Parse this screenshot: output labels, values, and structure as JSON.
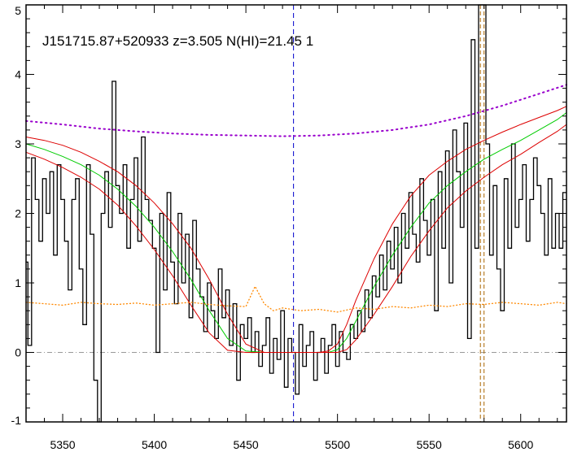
{
  "chart_data": {
    "type": "line",
    "title": "J151715.87+520933 z=3.505 N(HI)=21.45 1",
    "xlabel": "",
    "ylabel": "",
    "xlim": [
      5330,
      5625
    ],
    "ylim": [
      -1,
      5
    ],
    "x_ticks": [
      5350,
      5400,
      5450,
      5500,
      5550,
      5600
    ],
    "y_ticks": [
      -1,
      0,
      1,
      2,
      3,
      4,
      5
    ],
    "grid": false,
    "legend": "none",
    "colors": {
      "data": "#000000",
      "model": "#00cc00",
      "model_bounds": "#dd0000",
      "continuum": "#9900cc",
      "error": "#ff8800",
      "zero_line": "#999999",
      "center_line": "#0000cc",
      "feature_lines": "#aa6600"
    },
    "center_wavelength": 5476,
    "feature_lines": [
      5578,
      5580
    ],
    "series": [
      {
        "role": "flux",
        "style": "histogram",
        "x": [
          5330,
          5332,
          5334,
          5336,
          5338,
          5340,
          5342,
          5344,
          5346,
          5348,
          5350,
          5352,
          5354,
          5356,
          5358,
          5360,
          5362,
          5364,
          5366,
          5368,
          5370,
          5372,
          5374,
          5376,
          5378,
          5380,
          5382,
          5384,
          5386,
          5388,
          5390,
          5392,
          5394,
          5396,
          5398,
          5400,
          5402,
          5404,
          5406,
          5408,
          5410,
          5412,
          5414,
          5416,
          5418,
          5420,
          5422,
          5424,
          5426,
          5428,
          5430,
          5432,
          5434,
          5436,
          5438,
          5440,
          5442,
          5444,
          5446,
          5448,
          5450,
          5452,
          5454,
          5456,
          5458,
          5460,
          5462,
          5464,
          5466,
          5468,
          5470,
          5472,
          5474,
          5476,
          5478,
          5480,
          5482,
          5484,
          5486,
          5488,
          5490,
          5492,
          5494,
          5496,
          5498,
          5500,
          5502,
          5504,
          5506,
          5508,
          5510,
          5512,
          5514,
          5516,
          5518,
          5520,
          5522,
          5524,
          5526,
          5528,
          5530,
          5532,
          5534,
          5536,
          5538,
          5540,
          5542,
          5544,
          5546,
          5548,
          5550,
          5552,
          5554,
          5556,
          5558,
          5560,
          5562,
          5564,
          5566,
          5568,
          5570,
          5572,
          5574,
          5576,
          5578,
          5580,
          5582,
          5584,
          5586,
          5588,
          5590,
          5592,
          5594,
          5596,
          5598,
          5600,
          5602,
          5604,
          5606,
          5608,
          5610,
          5612,
          5614,
          5616,
          5618,
          5620,
          5622,
          5624
        ],
        "y": [
          1.3,
          0.1,
          2.8,
          2.2,
          1.6,
          2.5,
          2.0,
          2.6,
          1.4,
          2.7,
          2.2,
          1.6,
          0.9,
          2.2,
          2.5,
          1.2,
          0.4,
          2.7,
          1.7,
          -0.4,
          -1.0,
          2.0,
          2.6,
          1.8,
          3.9,
          2.4,
          2.0,
          2.7,
          1.5,
          2.2,
          2.8,
          1.6,
          3.1,
          2.2,
          1.9,
          1.5,
          0.0,
          2.0,
          0.9,
          2.3,
          1.3,
          0.7,
          2.0,
          1.0,
          1.7,
          0.5,
          1.9,
          1.2,
          0.8,
          0.3,
          1.0,
          0.6,
          0.2,
          1.2,
          0.5,
          0.9,
          0.1,
          0.7,
          -0.4,
          0.4,
          0.2,
          0.5,
          0.0,
          0.3,
          -0.2,
          0.1,
          0.5,
          -0.3,
          0.2,
          -0.1,
          0.6,
          -0.5,
          0.2,
          0.0,
          -0.6,
          0.4,
          -0.2,
          0.1,
          0.3,
          -0.4,
          0.0,
          0.2,
          -0.3,
          0.1,
          0.4,
          -0.2,
          0.3,
          0.0,
          -0.1,
          0.4,
          0.2,
          0.6,
          0.3,
          0.9,
          0.5,
          1.1,
          0.8,
          1.4,
          0.9,
          1.6,
          1.2,
          1.8,
          1.0,
          2.0,
          1.5,
          2.3,
          1.7,
          1.3,
          2.5,
          1.9,
          1.4,
          2.2,
          0.6,
          2.6,
          1.5,
          2.9,
          1.0,
          3.2,
          2.6,
          1.8,
          3.3,
          0.2,
          4.5,
          1.5,
          5.0,
          5.0,
          3.0,
          1.4,
          2.4,
          1.2,
          0.6,
          2.5,
          1.5,
          3.0,
          1.8,
          2.2,
          2.7,
          1.6,
          2.2,
          2.8,
          2.4,
          2.0,
          1.4,
          2.5,
          1.5,
          2.0,
          1.5,
          2.3
        ]
      },
      {
        "role": "model",
        "style": "line",
        "x": [
          5330,
          5340,
          5350,
          5360,
          5370,
          5380,
          5390,
          5400,
          5410,
          5420,
          5430,
          5440,
          5450,
          5460,
          5470,
          5480,
          5490,
          5495,
          5500,
          5505,
          5510,
          5520,
          5530,
          5540,
          5550,
          5560,
          5570,
          5580,
          5590,
          5600,
          5610,
          5620,
          5625
        ],
        "y": [
          3.0,
          2.92,
          2.82,
          2.7,
          2.55,
          2.35,
          2.1,
          1.8,
          1.45,
          1.05,
          0.6,
          0.2,
          0.02,
          0.0,
          0.0,
          0.0,
          0.0,
          0.0,
          0.04,
          0.2,
          0.45,
          0.95,
          1.4,
          1.8,
          2.15,
          2.4,
          2.6,
          2.78,
          2.92,
          3.05,
          3.2,
          3.35,
          3.45
        ]
      },
      {
        "role": "model-upper",
        "style": "line",
        "x": [
          5330,
          5340,
          5350,
          5360,
          5370,
          5380,
          5390,
          5400,
          5410,
          5420,
          5430,
          5440,
          5450,
          5460,
          5470,
          5480,
          5490,
          5495,
          5500,
          5505,
          5510,
          5520,
          5530,
          5540,
          5550,
          5560,
          5570,
          5580,
          5590,
          5600,
          5610,
          5620,
          5625
        ],
        "y": [
          3.1,
          3.05,
          2.98,
          2.88,
          2.75,
          2.6,
          2.4,
          2.15,
          1.85,
          1.5,
          1.05,
          0.55,
          0.12,
          0.0,
          0.0,
          0.0,
          0.0,
          0.02,
          0.12,
          0.4,
          0.75,
          1.35,
          1.85,
          2.25,
          2.55,
          2.75,
          2.92,
          3.05,
          3.17,
          3.28,
          3.38,
          3.48,
          3.54
        ]
      },
      {
        "role": "model-lower",
        "style": "line",
        "x": [
          5330,
          5340,
          5350,
          5360,
          5370,
          5380,
          5390,
          5400,
          5410,
          5420,
          5430,
          5440,
          5450,
          5460,
          5470,
          5480,
          5490,
          5495,
          5500,
          5505,
          5510,
          5520,
          5530,
          5540,
          5550,
          5560,
          5570,
          5580,
          5590,
          5600,
          5610,
          5620,
          5625
        ],
        "y": [
          2.88,
          2.78,
          2.66,
          2.52,
          2.35,
          2.12,
          1.82,
          1.48,
          1.1,
          0.68,
          0.28,
          0.03,
          0.0,
          0.0,
          0.0,
          0.0,
          0.0,
          0.0,
          0.0,
          0.04,
          0.18,
          0.55,
          0.95,
          1.38,
          1.75,
          2.08,
          2.32,
          2.52,
          2.7,
          2.85,
          3.02,
          3.18,
          3.28
        ]
      },
      {
        "role": "continuum",
        "style": "dotted",
        "x": [
          5330,
          5350,
          5370,
          5390,
          5410,
          5430,
          5450,
          5470,
          5490,
          5510,
          5530,
          5550,
          5570,
          5590,
          5610,
          5625
        ],
        "y": [
          3.33,
          3.28,
          3.22,
          3.18,
          3.15,
          3.13,
          3.12,
          3.11,
          3.12,
          3.15,
          3.2,
          3.28,
          3.4,
          3.55,
          3.72,
          3.85
        ]
      },
      {
        "role": "error",
        "style": "dotted",
        "x": [
          5330,
          5340,
          5350,
          5360,
          5370,
          5380,
          5390,
          5400,
          5410,
          5420,
          5430,
          5440,
          5450,
          5455,
          5460,
          5465,
          5470,
          5480,
          5490,
          5500,
          5510,
          5520,
          5530,
          5540,
          5550,
          5560,
          5570,
          5580,
          5590,
          5600,
          5610,
          5620,
          5625
        ],
        "y": [
          0.72,
          0.7,
          0.68,
          0.72,
          0.7,
          0.69,
          0.71,
          0.68,
          0.7,
          0.72,
          0.69,
          0.67,
          0.66,
          0.95,
          0.7,
          0.6,
          0.64,
          0.6,
          0.62,
          0.58,
          0.64,
          0.62,
          0.66,
          0.64,
          0.68,
          0.66,
          0.7,
          0.69,
          0.72,
          0.7,
          0.68,
          0.72,
          0.7
        ]
      }
    ]
  }
}
